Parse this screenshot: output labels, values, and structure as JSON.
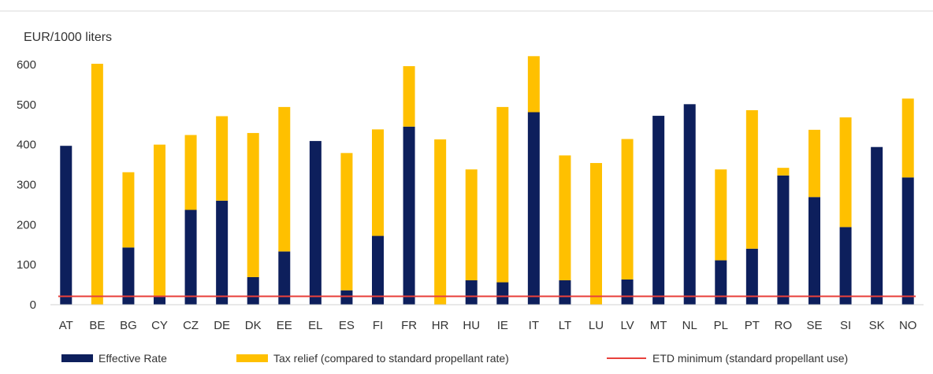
{
  "chart_data": {
    "type": "bar",
    "stacked": true,
    "ylabel": "EUR/1000 liters",
    "ylim": [
      0,
      600
    ],
    "yticks": [
      0,
      100,
      200,
      300,
      400,
      500,
      600
    ],
    "grid": false,
    "legend_position": "bottom",
    "categories": [
      "AT",
      "BE",
      "BG",
      "CY",
      "CZ",
      "DE",
      "DK",
      "EE",
      "EL",
      "ES",
      "FI",
      "FR",
      "HR",
      "HU",
      "IE",
      "IT",
      "LT",
      "LU",
      "LV",
      "MT",
      "NL",
      "PL",
      "PT",
      "RO",
      "SE",
      "SI",
      "SK",
      "NO"
    ],
    "series": [
      {
        "name": "Effective Rate",
        "color": "#0d1f5c",
        "values": [
          397,
          0,
          143,
          22,
          237,
          260,
          69,
          133,
          409,
          36,
          172,
          445,
          0,
          61,
          56,
          481,
          61,
          0,
          63,
          472,
          501,
          111,
          140,
          323,
          269,
          194,
          394,
          318
        ]
      },
      {
        "name": "Tax relief (compared to standard propellant rate)",
        "color": "#ffc000",
        "values": [
          0,
          602,
          188,
          378,
          187,
          211,
          360,
          361,
          0,
          343,
          266,
          151,
          413,
          277,
          438,
          140,
          312,
          354,
          351,
          0,
          0,
          227,
          346,
          19,
          168,
          274,
          0,
          197
        ]
      }
    ],
    "reference_line": {
      "name": "ETD minimum (standard propellant use)",
      "value": 21,
      "color": "#e8413c"
    }
  }
}
